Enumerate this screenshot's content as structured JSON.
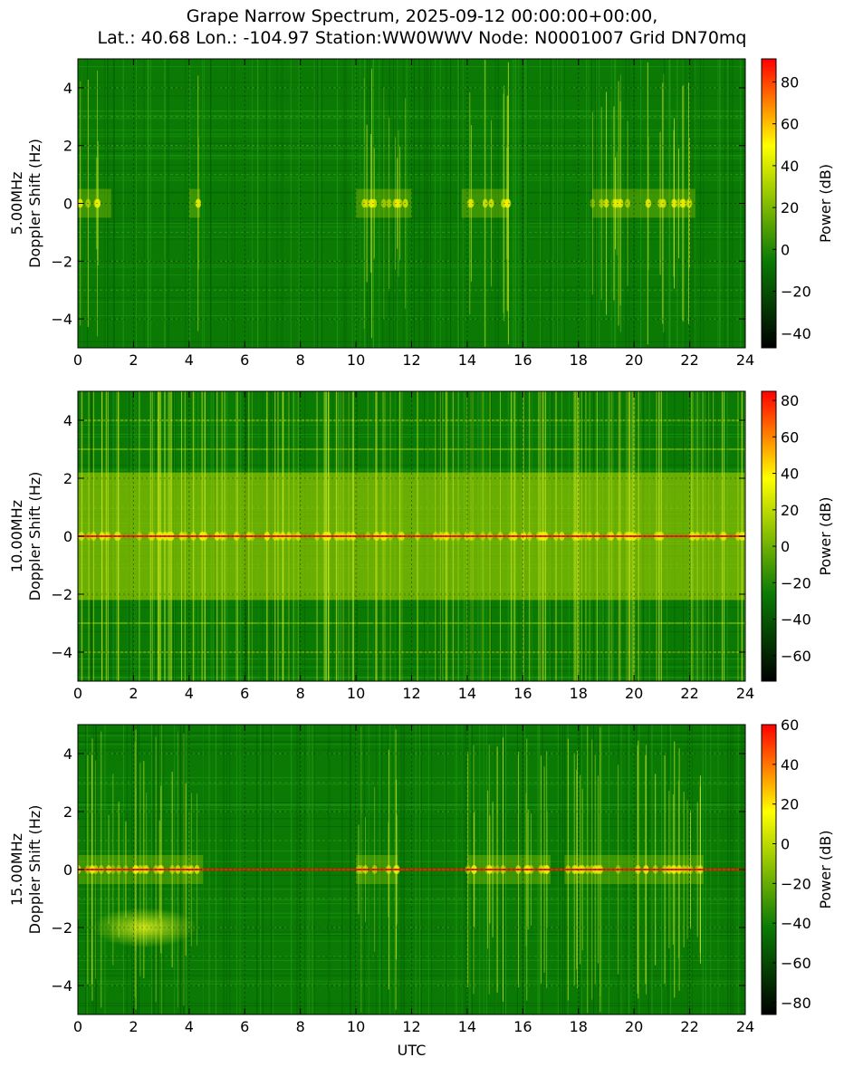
{
  "title": {
    "line1": "Grape Narrow Spectrum, 2025-09-12 00:00:00+00:00,",
    "line2": "Lat.: 40.68 Lon.: -104.97 Station:WW0WWV Node: N0001007 Grid DN70mq"
  },
  "colors": {
    "background_green": "#0a7a05",
    "colormap": [
      "#000000",
      "#0a7a05",
      "#ffff00",
      "#ff0000"
    ],
    "axis": "#000000"
  },
  "chart_data": [
    {
      "type": "heatmap",
      "frequency_label": "5.00MHz",
      "ylabel": "Doppler Shift (Hz)",
      "xlabel": "",
      "colorbar_label": "Power (dB)",
      "xlim": [
        0,
        24
      ],
      "ylim": [
        -5,
        5
      ],
      "x_ticks": [
        "0",
        "2",
        "4",
        "6",
        "8",
        "10",
        "12",
        "14",
        "16",
        "18",
        "20",
        "22",
        "24"
      ],
      "y_ticks": [
        "4",
        "2",
        "0",
        "−2",
        "−4"
      ],
      "clim": [
        -47,
        91
      ],
      "colorbar_ticks": [
        "80",
        "60",
        "40",
        "20",
        "0",
        "−20",
        "−40"
      ],
      "carrier_line": false,
      "active_periods_utc": [
        [
          0.0,
          1.2
        ],
        [
          4.0,
          4.4
        ],
        [
          10.0,
          12.0
        ],
        [
          13.8,
          15.5
        ],
        [
          18.5,
          22.2
        ]
      ],
      "disturbances": []
    },
    {
      "type": "heatmap",
      "frequency_label": "10.00MHz",
      "ylabel": "Doppler Shift (Hz)",
      "xlabel": "",
      "colorbar_label": "Power (dB)",
      "xlim": [
        0,
        24
      ],
      "ylim": [
        -5,
        5
      ],
      "x_ticks": [
        "0",
        "2",
        "4",
        "6",
        "8",
        "10",
        "12",
        "14",
        "16",
        "18",
        "20",
        "22",
        "24"
      ],
      "y_ticks": [
        "4",
        "2",
        "0",
        "−2",
        "−4"
      ],
      "clim": [
        -74,
        85
      ],
      "colorbar_ticks": [
        "80",
        "60",
        "40",
        "20",
        "0",
        "−20",
        "−40",
        "−60"
      ],
      "carrier_line": true,
      "active_periods_utc": [
        [
          0.0,
          24.0
        ]
      ],
      "disturbances": []
    },
    {
      "type": "heatmap",
      "frequency_label": "15.00MHz",
      "ylabel": "Doppler Shift (Hz)",
      "xlabel": "UTC",
      "colorbar_label": "Power (dB)",
      "xlim": [
        0,
        24
      ],
      "ylim": [
        -5,
        5
      ],
      "x_ticks": [
        "0",
        "2",
        "4",
        "6",
        "8",
        "10",
        "12",
        "14",
        "16",
        "18",
        "20",
        "22",
        "24"
      ],
      "y_ticks": [
        "4",
        "2",
        "0",
        "−2",
        "−4"
      ],
      "clim": [
        -86,
        60
      ],
      "colorbar_ticks": [
        "60",
        "40",
        "20",
        "0",
        "−20",
        "−40",
        "−60",
        "−80"
      ],
      "carrier_line": true,
      "active_periods_utc": [
        [
          0.0,
          4.5
        ],
        [
          10.0,
          11.5
        ],
        [
          14.0,
          17.0
        ],
        [
          17.5,
          22.5
        ]
      ],
      "disturbances": [
        {
          "x_start": 0.5,
          "x_end": 4.3,
          "y_center": -2.0
        }
      ]
    }
  ]
}
